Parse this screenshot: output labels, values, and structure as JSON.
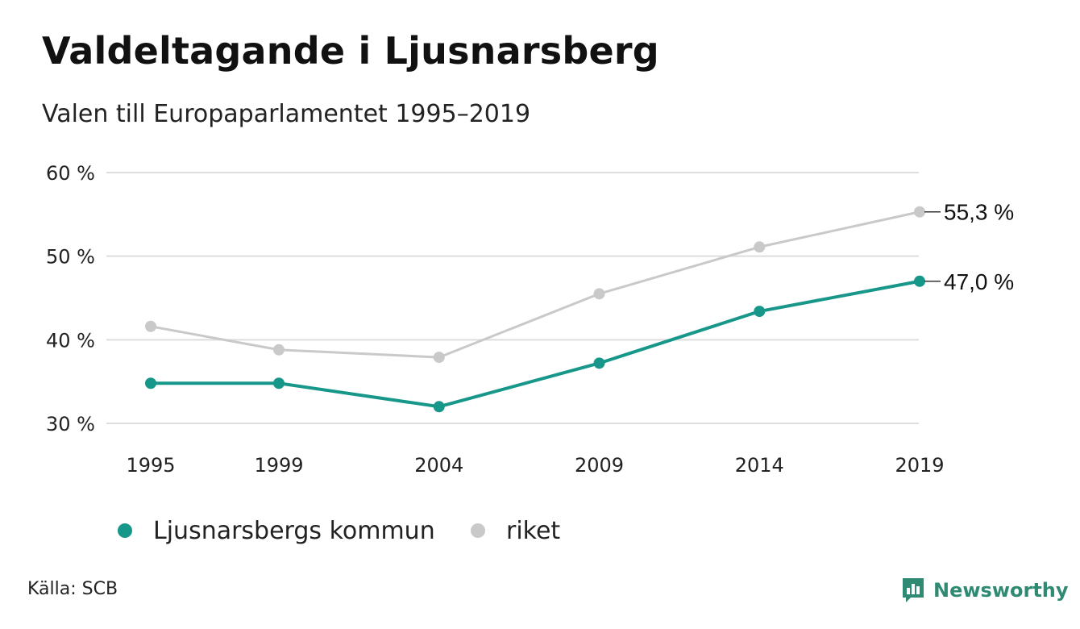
{
  "title": "Valdeltagande i Ljusnarsberg",
  "subtitle": "Valen till Europaparlamentet 1995–2019",
  "source": "Källa: SCB",
  "brand": "Newsworthy",
  "colors": {
    "kommun": "#17978a",
    "riket": "#c9c9c9",
    "grid": "#dedede",
    "brand": "#2f8a73"
  },
  "chart_data": {
    "type": "line",
    "title": "Valdeltagande i Ljusnarsberg",
    "subtitle": "Valen till Europaparlamentet 1995–2019",
    "xlabel": "",
    "ylabel": "",
    "x": [
      1995,
      1999,
      2004,
      2009,
      2014,
      2019
    ],
    "x_tick_labels": [
      "1995",
      "1999",
      "2004",
      "2009",
      "2014",
      "2019"
    ],
    "y_ticks": [
      30,
      40,
      50,
      60
    ],
    "y_tick_labels": [
      "30 %",
      "40 %",
      "50 %",
      "60 %"
    ],
    "ylim": [
      30,
      60
    ],
    "grid": true,
    "legend_position": "bottom-left",
    "series": [
      {
        "name": "Ljusnarsbergs kommun",
        "key": "kommun",
        "values": [
          34.8,
          34.8,
          32.0,
          37.2,
          43.4,
          47.0
        ],
        "end_label": "47,0 %"
      },
      {
        "name": "riket",
        "key": "riket",
        "values": [
          41.6,
          38.8,
          37.9,
          45.5,
          51.1,
          55.3
        ],
        "end_label": "55,3 %"
      }
    ]
  }
}
